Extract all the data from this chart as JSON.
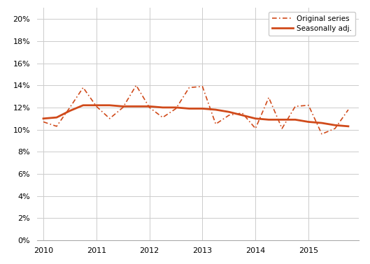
{
  "title": "",
  "line_color": "#d04a1a",
  "background_color": "#ffffff",
  "grid_color": "#cccccc",
  "ylim": [
    0,
    0.21
  ],
  "yticks": [
    0.0,
    0.02,
    0.04,
    0.06,
    0.08,
    0.1,
    0.12,
    0.14,
    0.16,
    0.18,
    0.2
  ],
  "legend_labels": [
    "Original series",
    "Seasonally adj."
  ],
  "original_x": [
    2010.0,
    2010.25,
    2010.5,
    2010.75,
    2011.0,
    2011.25,
    2011.5,
    2011.75,
    2012.0,
    2012.25,
    2012.5,
    2012.75,
    2013.0,
    2013.25,
    2013.5,
    2013.75,
    2014.0,
    2014.25,
    2014.5,
    2014.75,
    2015.0,
    2015.25,
    2015.5,
    2015.75
  ],
  "original_y": [
    0.107,
    0.103,
    0.12,
    0.138,
    0.121,
    0.11,
    0.12,
    0.14,
    0.12,
    0.111,
    0.119,
    0.138,
    0.139,
    0.105,
    0.113,
    0.115,
    0.101,
    0.129,
    0.101,
    0.121,
    0.122,
    0.096,
    0.101,
    0.118
  ],
  "seasonal_x": [
    2010.0,
    2010.25,
    2010.5,
    2010.75,
    2011.0,
    2011.25,
    2011.5,
    2011.75,
    2012.0,
    2012.25,
    2012.5,
    2012.75,
    2013.0,
    2013.25,
    2013.5,
    2013.75,
    2014.0,
    2014.25,
    2014.5,
    2014.75,
    2015.0,
    2015.25,
    2015.5,
    2015.75
  ],
  "seasonal_y": [
    0.11,
    0.111,
    0.117,
    0.122,
    0.122,
    0.122,
    0.121,
    0.121,
    0.121,
    0.12,
    0.12,
    0.119,
    0.119,
    0.118,
    0.116,
    0.113,
    0.11,
    0.109,
    0.109,
    0.109,
    0.107,
    0.106,
    0.104,
    0.103
  ],
  "xticks": [
    2010,
    2011,
    2012,
    2013,
    2014,
    2015
  ],
  "xlim": [
    2009.88,
    2015.95
  ],
  "figsize": [
    5.29,
    3.78
  ],
  "dpi": 100
}
